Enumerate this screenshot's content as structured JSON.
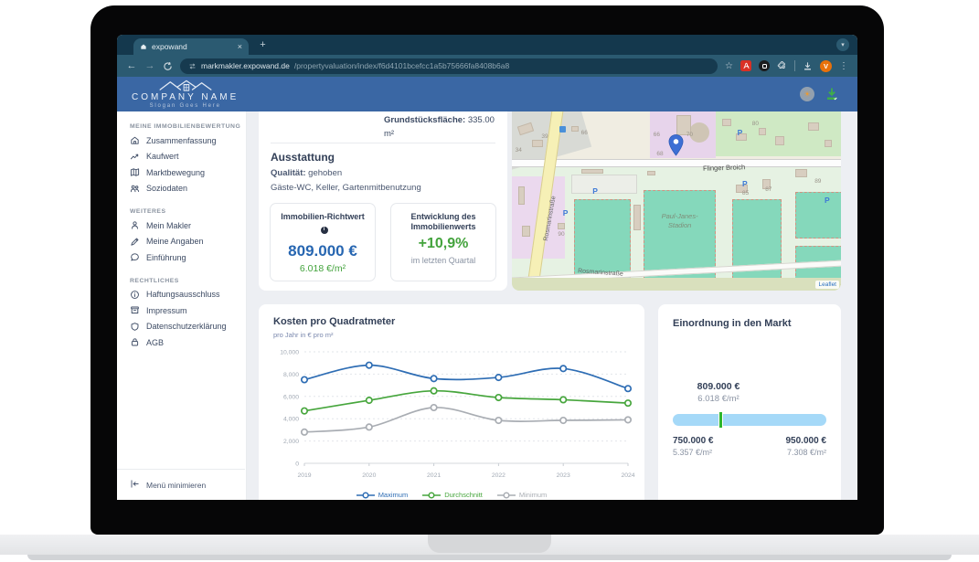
{
  "browser": {
    "tab_title": "expowand",
    "tab_close": "×",
    "new_tab": "+",
    "url_domain": "markmakler.expowand.de",
    "url_path": "/propertyvaluation/index/f6d4101bcefcc1a5b75666fa8408b6a8",
    "avatar_letter": "V"
  },
  "header": {
    "company": "COMPANY NAME",
    "slogan": "Slogan Goes Here"
  },
  "sidebar": {
    "sections": [
      {
        "heading": "MEINE IMMOBILIENBEWERTUNG",
        "items": [
          {
            "icon": "home",
            "label": "Zusammenfassung"
          },
          {
            "icon": "trend",
            "label": "Kaufwert"
          },
          {
            "icon": "map",
            "label": "Marktbewegung"
          },
          {
            "icon": "people",
            "label": "Soziodaten"
          }
        ]
      },
      {
        "heading": "WEITERES",
        "items": [
          {
            "icon": "person",
            "label": "Mein Makler"
          },
          {
            "icon": "pen",
            "label": "Meine Angaben"
          },
          {
            "icon": "chat",
            "label": "Einführung"
          }
        ]
      },
      {
        "heading": "RECHTLICHES",
        "items": [
          {
            "icon": "info",
            "label": "Haftungsausschluss"
          },
          {
            "icon": "archive",
            "label": "Impressum"
          },
          {
            "icon": "shield",
            "label": "Datenschutzerklärung"
          },
          {
            "icon": "lock",
            "label": "AGB"
          }
        ]
      }
    ],
    "collapse_label": "Menü minimieren"
  },
  "summary": {
    "plot_area_label": "Grundstücksfläche:",
    "plot_area_value": "335.00 m²",
    "section_title": "Ausstattung",
    "quality_label": "Qualität:",
    "quality_value": "gehoben",
    "features": "Gäste-WC, Keller, Gartenmitbenutzung",
    "cards": [
      {
        "title": "Immobilien-Richtwert",
        "value": "809.000 €",
        "sub": "6.018 €/m²"
      },
      {
        "title": "Entwicklung des Immobilienwerts",
        "value": "+10,9%",
        "sub": "im letzten Quartal"
      }
    ]
  },
  "map": {
    "main_street": "Flinger Broich",
    "side_street": "Rosmarinstraße",
    "bottom_street": "Rosmarinstraße",
    "stadium_line1": "Paul-Janes-",
    "stadium_line2": "Stadion",
    "attribution": "Leaflet",
    "parking_letter": "P",
    "house_numbers": [
      "39",
      "34",
      "66",
      "66",
      "68",
      "70",
      "80",
      "85",
      "87",
      "89",
      "90"
    ]
  },
  "chart_card": {
    "title": "Kosten pro Quadratmeter",
    "subtitle": "pro Jahr in € pro m²"
  },
  "chart_data": {
    "type": "line",
    "title": "Kosten pro Quadratmeter",
    "ylabel": "pro Jahr in € pro m²",
    "x": [
      2019,
      2020,
      2021,
      2022,
      2023,
      2024
    ],
    "series": [
      {
        "name": "Maximum",
        "color": "#2e6db4",
        "values": [
          7500,
          8800,
          7600,
          7700,
          8500,
          6700
        ]
      },
      {
        "name": "Durchschnitt",
        "color": "#47a63d",
        "values": [
          4700,
          5650,
          6500,
          5900,
          5700,
          5400
        ]
      },
      {
        "name": "Minimum",
        "color": "#a9adb3",
        "values": [
          2800,
          3250,
          5000,
          3850,
          3850,
          3900
        ]
      }
    ],
    "ylim": [
      0,
      10000
    ],
    "yticks": [
      0,
      2000,
      4000,
      6000,
      8000,
      10000
    ],
    "ytick_labels": [
      "0",
      "2,000",
      "4,000",
      "6,000",
      "8,000",
      "10,000"
    ],
    "grid": true,
    "legend_position": "bottom"
  },
  "market": {
    "title": "Einordnung in den Markt",
    "current_value": "809.000 €",
    "current_sub": "6.018 €/m²",
    "min_value": "750.000 €",
    "min_sub": "5.357 €/m²",
    "max_value": "950.000 €",
    "max_sub": "7.308 €/m²",
    "marker_percent": 29.5
  },
  "colors": {
    "chrome_dark": "#14384d",
    "chrome_mid": "#2b5a71",
    "header_blue": "#3a67a4",
    "value_blue": "#2766b1",
    "green": "#43a33c",
    "bar_blue": "#a5d9f8",
    "marker_green": "#2eb62c"
  }
}
